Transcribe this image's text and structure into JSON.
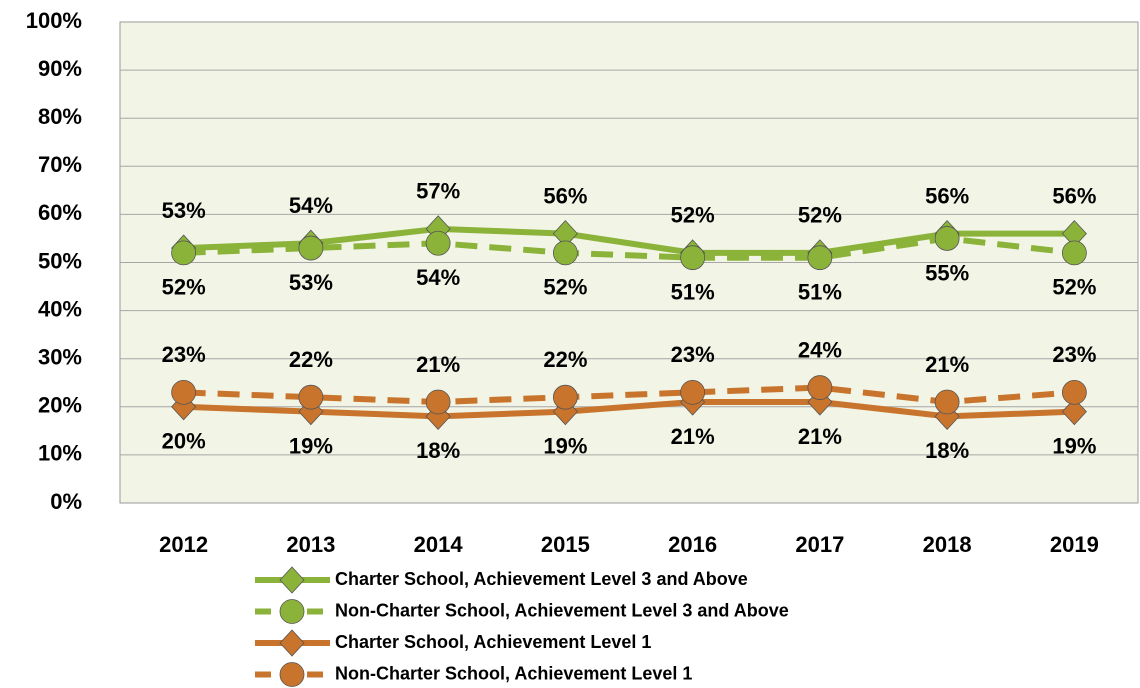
{
  "chart_data": {
    "type": "line",
    "categories": [
      "2012",
      "2013",
      "2014",
      "2015",
      "2016",
      "2017",
      "2018",
      "2019"
    ],
    "series": [
      {
        "name": "Charter School, Achievement Level 3 and Above",
        "color": "#8bb33a",
        "dash": false,
        "marker": "diamond",
        "label_position": "above",
        "values": [
          53,
          54,
          57,
          56,
          52,
          52,
          56,
          56
        ],
        "value_labels": [
          "53%",
          "54%",
          "57%",
          "56%",
          "52%",
          "52%",
          "56%",
          "56%"
        ]
      },
      {
        "name": "Non-Charter School, Achievement Level 3 and Above",
        "color": "#8bb33a",
        "dash": true,
        "marker": "circle",
        "label_position": "below",
        "values": [
          52,
          53,
          54,
          52,
          51,
          51,
          55,
          52
        ],
        "value_labels": [
          "52%",
          "53%",
          "54%",
          "52%",
          "51%",
          "51%",
          "55%",
          "52%"
        ]
      },
      {
        "name": "Charter School, Achievement Level 1",
        "color": "#c8742c",
        "dash": false,
        "marker": "diamond",
        "label_position": "below",
        "values": [
          20,
          19,
          18,
          19,
          21,
          21,
          18,
          19
        ],
        "value_labels": [
          "20%",
          "19%",
          "18%",
          "19%",
          "21%",
          "21%",
          "18%",
          "19%"
        ]
      },
      {
        "name": "Non-Charter School, Achievement Level 1",
        "color": "#c8742c",
        "dash": true,
        "marker": "circle",
        "label_position": "above",
        "values": [
          23,
          22,
          21,
          22,
          23,
          24,
          21,
          23
        ],
        "value_labels": [
          "23%",
          "22%",
          "21%",
          "22%",
          "23%",
          "24%",
          "21%",
          "23%"
        ]
      }
    ],
    "ylim": [
      0,
      100
    ],
    "yticks": [
      {
        "value": 0,
        "label": "0%"
      },
      {
        "value": 10,
        "label": "10%"
      },
      {
        "value": 20,
        "label": "20%"
      },
      {
        "value": 30,
        "label": "30%"
      },
      {
        "value": 40,
        "label": "40%"
      },
      {
        "value": 50,
        "label": "50%"
      },
      {
        "value": 60,
        "label": "60%"
      },
      {
        "value": 70,
        "label": "70%"
      },
      {
        "value": 80,
        "label": "80%"
      },
      {
        "value": 90,
        "label": "90%"
      },
      {
        "value": 100,
        "label": "100%"
      }
    ],
    "grid": true,
    "legend": "bottom"
  }
}
